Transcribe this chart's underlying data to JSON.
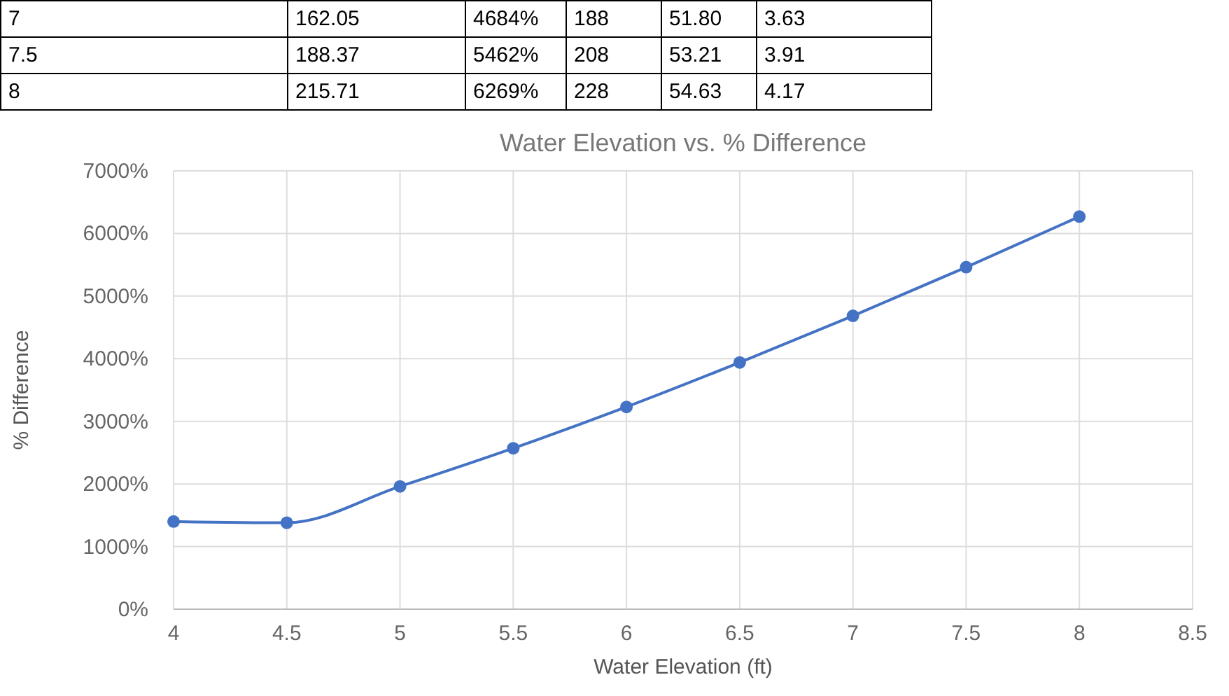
{
  "chart_data": {
    "type": "line",
    "title": "Water Elevation vs. % Difference",
    "xlabel": "Water Elevation (ft)",
    "ylabel": "% Difference",
    "x": [
      4,
      4.5,
      5,
      5.5,
      6,
      6.5,
      7,
      7.5,
      8
    ],
    "series": [
      {
        "color": "#4472c4",
        "values": [
          1400,
          1380,
          1960,
          2570,
          3230,
          3940,
          4684,
          5462,
          6269
        ]
      }
    ],
    "xlim": [
      4,
      8.5
    ],
    "xticks": [
      4,
      4.5,
      5,
      5.5,
      6,
      6.5,
      7,
      7.5,
      8,
      8.5
    ],
    "ylim": [
      0,
      7000
    ],
    "yticks": [
      {
        "value": 0,
        "label": "0%"
      },
      {
        "value": 1000,
        "label": "1000%"
      },
      {
        "value": 2000,
        "label": "2000%"
      },
      {
        "value": 3000,
        "label": "3000%"
      },
      {
        "value": 4000,
        "label": "4000%"
      },
      {
        "value": 5000,
        "label": "5000%"
      },
      {
        "value": 6000,
        "label": "6000%"
      },
      {
        "value": 7000,
        "label": "7000%"
      }
    ],
    "grid": true,
    "marker": "circle",
    "annotations": [
      "7",
      "162.05",
      "4684%",
      "188",
      "51.80",
      "3.63",
      "7.5",
      "188.37",
      "5462%",
      "208",
      "53.21",
      "3.91",
      "8",
      "215.71",
      "6269%",
      "228",
      "54.63",
      "4.17"
    ]
  }
}
